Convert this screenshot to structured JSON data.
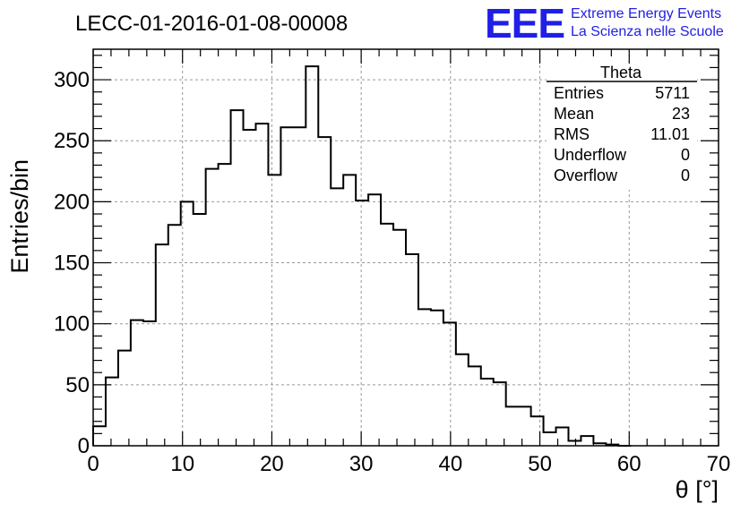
{
  "chart_data": {
    "type": "histogram",
    "title": "LECC-01-2016-01-08-00008",
    "xlabel": "θ [°]",
    "ylabel": "Entries/bin",
    "xlim": [
      0,
      70
    ],
    "ylim": [
      0,
      325
    ],
    "grid": true,
    "bin_width": 1.4,
    "bin_starts": [
      0,
      1.4,
      2.8,
      4.2,
      5.6,
      7,
      8.4,
      9.8,
      11.2,
      12.6,
      14,
      15.4,
      16.8,
      18.2,
      19.6,
      21,
      22.4,
      23.8,
      25.2,
      26.6,
      28,
      29.4,
      30.8,
      32.2,
      33.6,
      35,
      36.4,
      37.8,
      39.2,
      40.6,
      42,
      43.4,
      44.8,
      46.2,
      47.6,
      49,
      50.4,
      51.8,
      53.2,
      54.6,
      56,
      57.4,
      58.8
    ],
    "values": [
      16,
      56,
      78,
      103,
      102,
      165,
      181,
      200,
      190,
      227,
      231,
      275,
      259,
      264,
      222,
      261,
      261,
      311,
      253,
      211,
      222,
      201,
      206,
      182,
      177,
      157,
      112,
      111,
      101,
      75,
      65,
      55,
      52,
      32,
      32,
      24,
      11,
      15,
      4,
      8,
      2,
      1,
      0
    ],
    "xticks": [
      "0",
      "10",
      "20",
      "30",
      "40",
      "50",
      "60",
      "70"
    ],
    "yticks": [
      "0",
      "50",
      "100",
      "150",
      "200",
      "250",
      "300"
    ],
    "ytick_values": [
      0,
      50,
      100,
      150,
      200,
      250,
      300
    ],
    "xtick_values": [
      0,
      10,
      20,
      30,
      40,
      50,
      60,
      70
    ],
    "legend_position": "top-right",
    "stats_box": {
      "name": "Theta",
      "rows": [
        {
          "label": "Entries",
          "value": "5711"
        },
        {
          "label": "Mean",
          "value": "23"
        },
        {
          "label": "RMS",
          "value": "11.01"
        },
        {
          "label": "Underflow",
          "value": "0"
        },
        {
          "label": "Overflow",
          "value": "0"
        }
      ]
    }
  },
  "logo": {
    "mark": "EEE",
    "line1": "Extreme Energy Events",
    "line2": "La Scienza nelle Scuole",
    "color": "#1f1fe6"
  }
}
